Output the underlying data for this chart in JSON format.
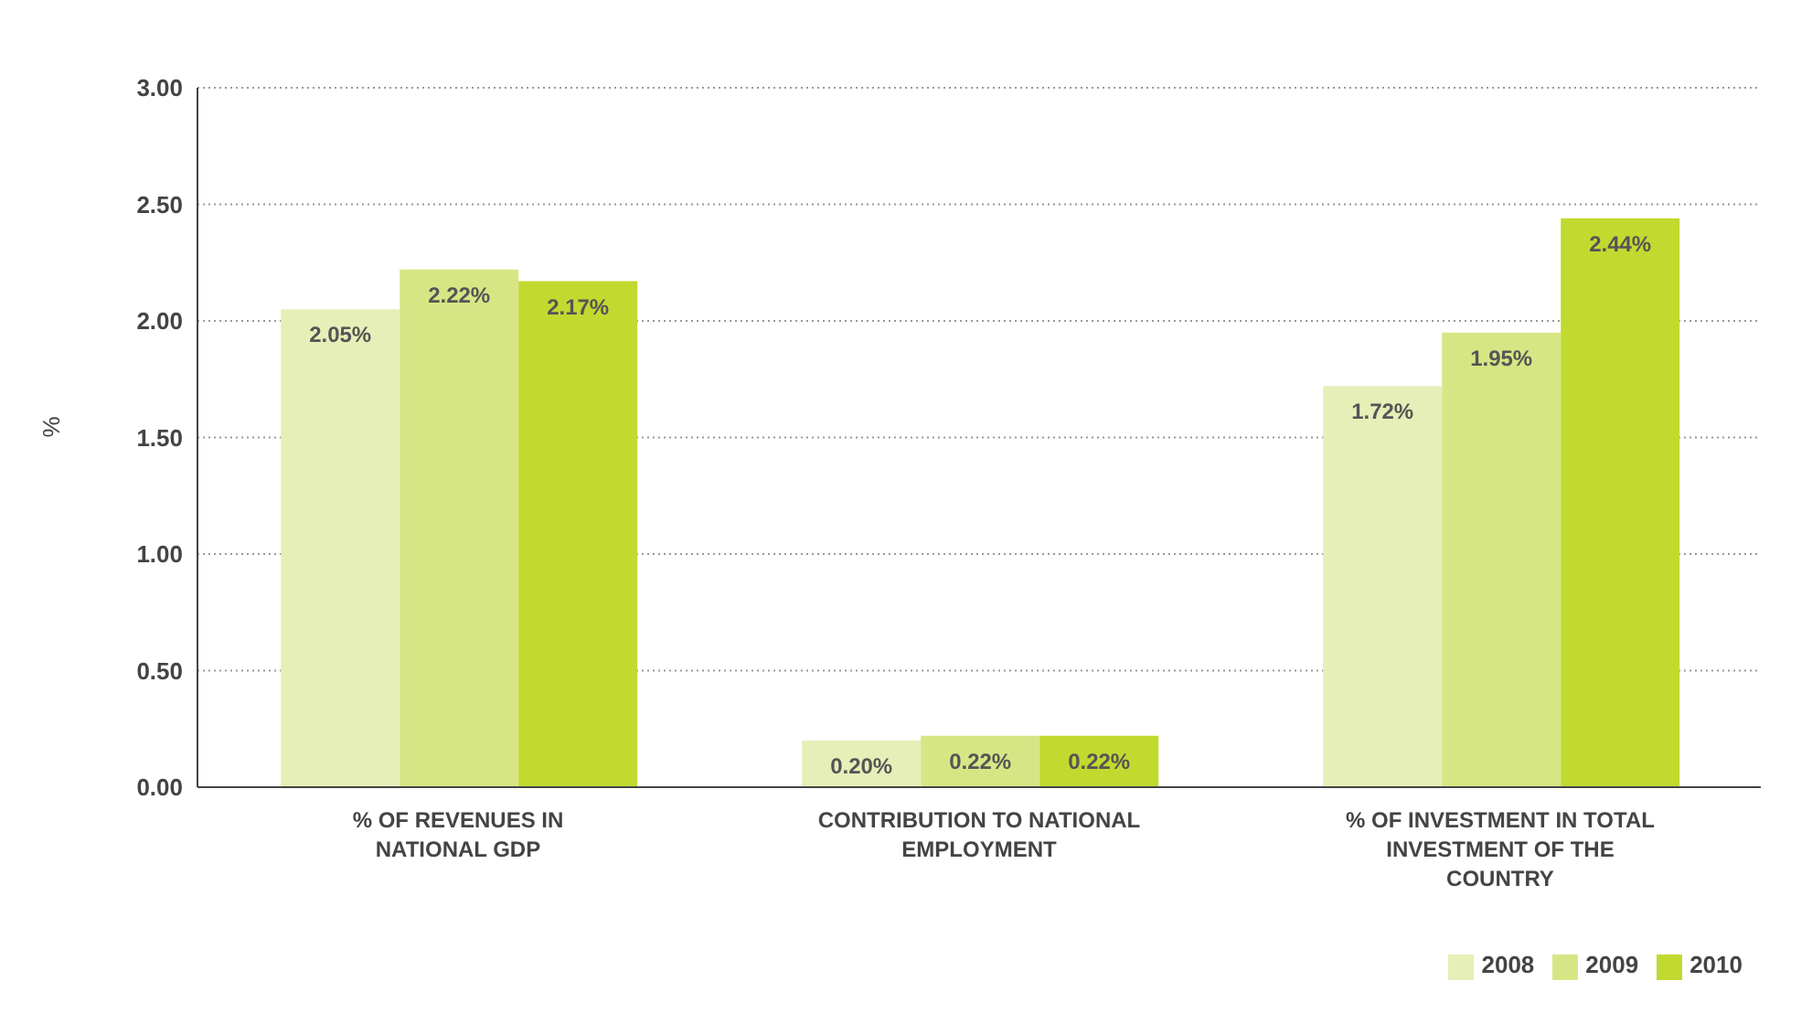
{
  "chart_data": {
    "type": "bar",
    "ylabel": "%",
    "categories": [
      "% OF REVENUES IN NATIONAL GDP",
      "CONTRIBUTION TO NATIONAL EMPLOYMENT",
      "% OF INVESTMENT IN TOTAL INVESTMENT OF THE COUNTRY"
    ],
    "series": [
      {
        "name": "2008",
        "color": "#e6efb8",
        "values": [
          2.05,
          0.2,
          1.72
        ],
        "value_labels": [
          "2.05%",
          "0.20%",
          "1.72%"
        ]
      },
      {
        "name": "2009",
        "color": "#d7e685",
        "values": [
          2.22,
          0.22,
          1.95
        ],
        "value_labels": [
          "2.22%",
          "0.22%",
          "1.95%"
        ]
      },
      {
        "name": "2010",
        "color": "#c2d930",
        "values": [
          2.17,
          0.22,
          2.44
        ],
        "value_labels": [
          "2.17%",
          "0.22%",
          "2.44%"
        ]
      }
    ],
    "ylim": [
      0,
      3
    ],
    "yticks": [
      {
        "value": 0,
        "label": "0.00"
      },
      {
        "value": 0.5,
        "label": "0.50"
      },
      {
        "value": 1,
        "label": "1.00"
      },
      {
        "value": 1.5,
        "label": "1.50"
      },
      {
        "value": 2,
        "label": "2.00"
      },
      {
        "value": 2.5,
        "label": "2.50"
      },
      {
        "value": 3,
        "label": "3.00"
      }
    ],
    "grid": "y",
    "legend": "bottom right"
  }
}
